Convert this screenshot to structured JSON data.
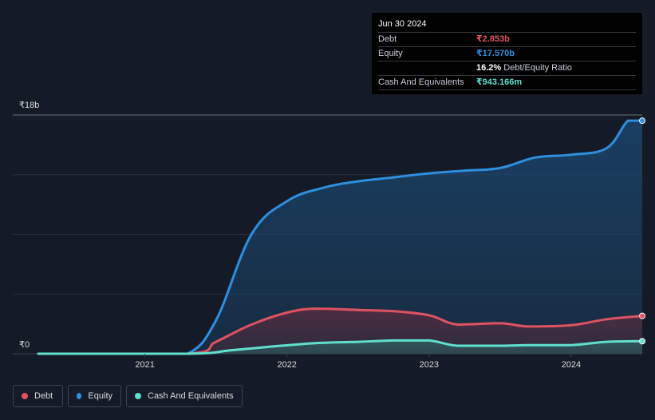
{
  "chart_data": {
    "type": "area",
    "currency_unit": "billion INR",
    "y_axis": {
      "top_label": "₹18b",
      "bottom_label": "₹0",
      "ylim": [
        0,
        18
      ]
    },
    "x_axis": {
      "ticks": [
        "2021",
        "2022",
        "2023",
        "2024"
      ],
      "xlim": [
        2020.25,
        2024.5
      ]
    },
    "series": [
      {
        "name": "Equity",
        "color": "#2d8fe0",
        "points": [
          [
            2020.25,
            0
          ],
          [
            2021.0,
            0
          ],
          [
            2021.3,
            0
          ],
          [
            2021.5,
            2.5
          ],
          [
            2021.75,
            9
          ],
          [
            2022.0,
            11.5
          ],
          [
            2022.25,
            12.5
          ],
          [
            2022.5,
            13
          ],
          [
            2022.75,
            13.3
          ],
          [
            2023.0,
            13.6
          ],
          [
            2023.25,
            13.8
          ],
          [
            2023.5,
            14
          ],
          [
            2023.75,
            14.8
          ],
          [
            2024.0,
            15
          ],
          [
            2024.25,
            15.5
          ],
          [
            2024.4,
            17.57
          ],
          [
            2024.5,
            17.57
          ]
        ]
      },
      {
        "name": "Debt",
        "color": "#e05260",
        "points": [
          [
            2020.25,
            0
          ],
          [
            2021.3,
            0
          ],
          [
            2021.5,
            0.9
          ],
          [
            2021.75,
            2.2
          ],
          [
            2022.0,
            3.1
          ],
          [
            2022.2,
            3.4
          ],
          [
            2022.5,
            3.3
          ],
          [
            2022.75,
            3.2
          ],
          [
            2023.0,
            2.9
          ],
          [
            2023.2,
            2.2
          ],
          [
            2023.5,
            2.3
          ],
          [
            2023.7,
            2.05
          ],
          [
            2024.0,
            2.15
          ],
          [
            2024.25,
            2.6
          ],
          [
            2024.5,
            2.853
          ]
        ]
      },
      {
        "name": "Cash And Equivalents",
        "color": "#5fe0cd",
        "points": [
          [
            2020.25,
            0
          ],
          [
            2021.3,
            0
          ],
          [
            2021.6,
            0.25
          ],
          [
            2021.9,
            0.55
          ],
          [
            2022.2,
            0.8
          ],
          [
            2022.5,
            0.9
          ],
          [
            2022.75,
            1
          ],
          [
            2023.0,
            1
          ],
          [
            2023.2,
            0.6
          ],
          [
            2023.5,
            0.6
          ],
          [
            2023.7,
            0.65
          ],
          [
            2024.0,
            0.65
          ],
          [
            2024.25,
            0.9
          ],
          [
            2024.5,
            0.943
          ]
        ]
      }
    ]
  },
  "tooltip": {
    "date": "Jun 30 2024",
    "debt_label": "Debt",
    "debt_value": "₹2.853b",
    "equity_label": "Equity",
    "equity_value": "₹17.570b",
    "ratio_value": "16.2%",
    "ratio_label": "Debt/Equity Ratio",
    "cash_label": "Cash And Equivalents",
    "cash_value": "₹943.166m"
  },
  "legend": {
    "debt": "Debt",
    "equity": "Equity",
    "cash": "Cash And Equivalents"
  },
  "colors": {
    "background": "#151b26",
    "debt": "#e05260",
    "equity": "#2d8fe0",
    "cash": "#5fe0cd"
  }
}
